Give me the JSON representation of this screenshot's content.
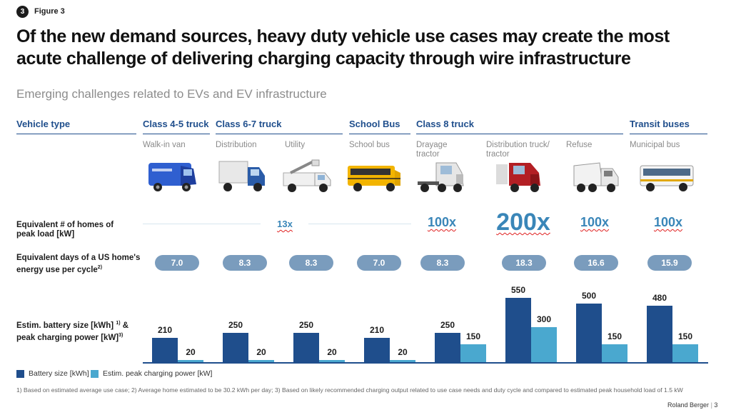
{
  "figure": {
    "number": "3",
    "label": "Figure 3"
  },
  "title": "Of the new demand sources, heavy duty vehicle use cases may create the most acute challenge of delivering charging capacity through wire infrastructure",
  "subtitle": "Emerging challenges related to EVs and EV infrastructure",
  "columns": {
    "vehicle_type": "Vehicle type",
    "class45": "Class 4-5 truck",
    "class67": "Class 6-7 truck",
    "schoolbus": "School Bus",
    "class8": "Class 8 truck",
    "transit": "Transit buses"
  },
  "use_cases": [
    "Walk-in van",
    "Distribution",
    "Utility",
    "School bus",
    "Drayage tractor",
    "Distribution truck/ tractor",
    "Refuse",
    "Municipal bus"
  ],
  "row_labels": {
    "homes": "Equivalent # of homes of peak load [kW]",
    "days_line1": "Equivalent days of a US home's",
    "days_line2": "energy use per cycle",
    "days_sup": "2)",
    "battery_line1": "Estim. battery size [kWh]",
    "battery_sup1": "1)",
    "battery_amp": "&",
    "battery_line2": "peak charging power [kW]",
    "battery_sup2": "3)"
  },
  "homes_values": {
    "group_light": "13x",
    "drayage": "100x",
    "distribution": "200x",
    "refuse": "100x",
    "municipal": "100x"
  },
  "days_values": [
    "7.0",
    "8.3",
    "8.3",
    "7.0",
    "8.3",
    "18.3",
    "16.6",
    "15.9"
  ],
  "legend": {
    "battery": "Battery size [kWh]",
    "charging": "Estim. peak charging power [kW]"
  },
  "colors": {
    "battery": "#1f4e8c",
    "charging": "#4aa8cf",
    "pill": "#7a9cbd",
    "header": "#1f4e8c"
  },
  "chart_data": {
    "type": "bar",
    "categories": [
      "Walk-in van",
      "Distribution",
      "Utility",
      "School bus",
      "Drayage tractor",
      "Distribution truck/ tractor",
      "Refuse",
      "Municipal bus"
    ],
    "series": [
      {
        "name": "Battery size [kWh]",
        "values": [
          210,
          250,
          250,
          210,
          250,
          550,
          500,
          480
        ]
      },
      {
        "name": "Estim. peak charging power [kW]",
        "values": [
          20,
          20,
          20,
          20,
          150,
          300,
          150,
          150
        ]
      }
    ],
    "ylim": [
      0,
      550
    ],
    "legend_position": "bottom-left"
  },
  "footnote": "1) Based on estimated average use case;  2) Average home estimated to be 30.2 kWh per day;  3) Based on likely recommended charging output related to use case needs and duty cycle and compared to estimated peak household load of 1.5 kW",
  "brand": "Roland Berger",
  "page_number": "3"
}
